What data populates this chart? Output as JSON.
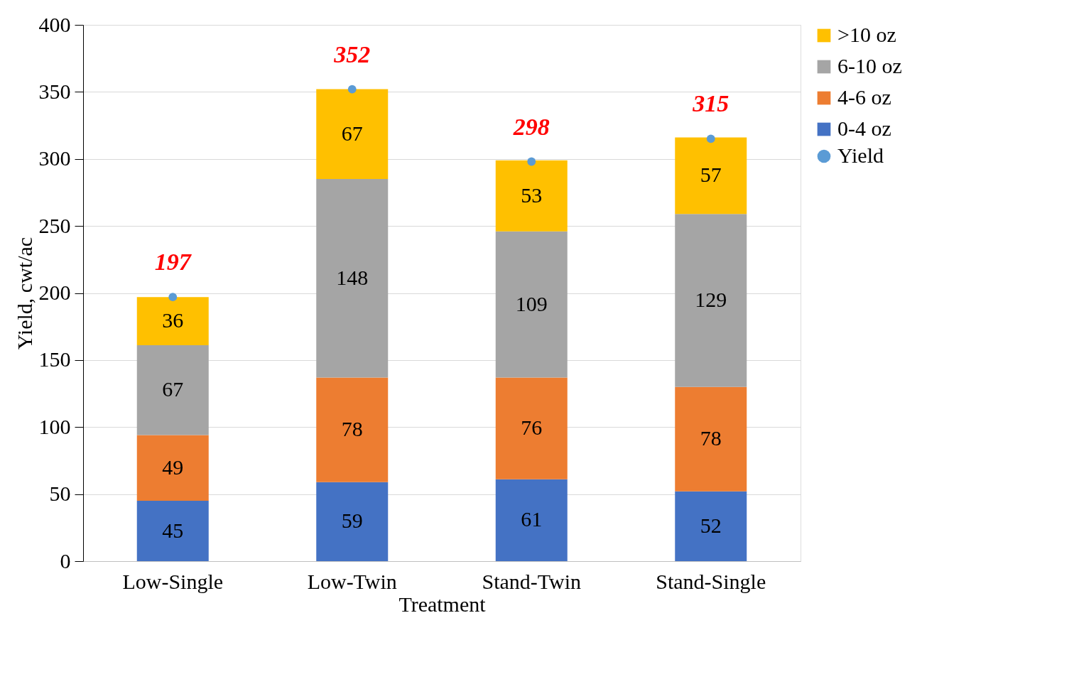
{
  "chart_data": {
    "type": "bar",
    "stacked": true,
    "xlabel": "Treatment",
    "ylabel": "Yield, cwt/ac",
    "categories": [
      "Low-Single",
      "Low-Twin",
      "Stand-Twin",
      "Stand-Single"
    ],
    "series": [
      {
        "name": "0-4 oz",
        "color": "#4472c4",
        "values": [
          45,
          59,
          61,
          52
        ]
      },
      {
        "name": "4-6 oz",
        "color": "#ed7d31",
        "values": [
          49,
          78,
          76,
          78
        ]
      },
      {
        "name": "6-10 oz",
        "color": "#a5a5a5",
        "values": [
          67,
          148,
          109,
          129
        ]
      },
      {
        "name": ">10 oz",
        "color": "#ffc000",
        "values": [
          36,
          67,
          53,
          57
        ]
      },
      {
        "name": "Yield",
        "type": "scatter",
        "color": "#5b9bd5",
        "values": [
          197,
          352,
          298,
          315
        ],
        "marker": "circle"
      }
    ],
    "ylim": [
      0,
      400
    ],
    "yticks": [
      0,
      50,
      100,
      150,
      200,
      250,
      300,
      350,
      400
    ],
    "grid": "y",
    "legend": "right",
    "data_labels": true
  }
}
